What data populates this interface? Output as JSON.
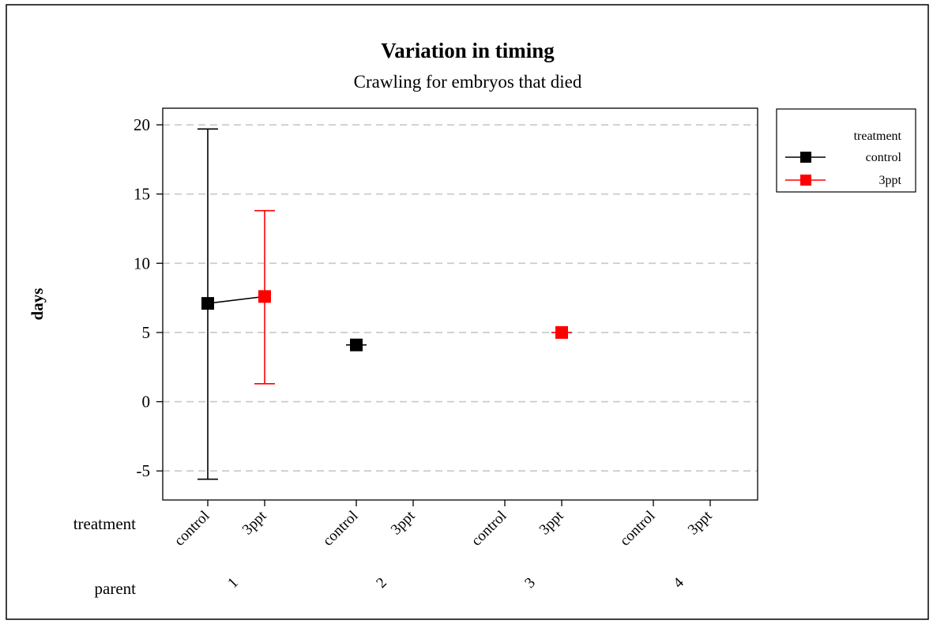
{
  "chart_data": {
    "type": "scatter",
    "title": "Variation in timing",
    "subtitle": "Crawling for embryos that died",
    "ylabel": "days",
    "ylim": [
      -7.1,
      21.2
    ],
    "yticks": [
      -5,
      0,
      5,
      10,
      15,
      20
    ],
    "grid": "horizontal-dashed",
    "x_levels": [
      {
        "name": "treatment",
        "labels": [
          "control",
          "3ppt",
          "control",
          "3ppt",
          "control",
          "3ppt",
          "control",
          "3ppt"
        ]
      },
      {
        "name": "parent",
        "labels": [
          "1",
          "2",
          "3",
          "4"
        ]
      }
    ],
    "legend": {
      "title": "treatment",
      "position": "right",
      "entries": [
        "control",
        "3ppt"
      ]
    },
    "series": [
      {
        "name": "control",
        "color": "#000000",
        "points": [
          {
            "parent": "1",
            "mean": 7.1,
            "lower": -5.6,
            "upper": 19.7
          },
          {
            "parent": "2",
            "mean": 4.1,
            "lower": 4.1,
            "upper": 4.1
          }
        ]
      },
      {
        "name": "3ppt",
        "color": "#ff0000",
        "points": [
          {
            "parent": "1",
            "mean": 7.6,
            "lower": 1.3,
            "upper": 13.8
          },
          {
            "parent": "3",
            "mean": 5.0,
            "lower": 5.0,
            "upper": 5.0
          }
        ]
      }
    ]
  }
}
